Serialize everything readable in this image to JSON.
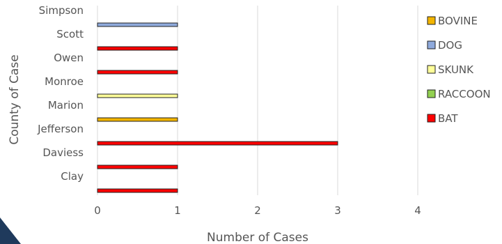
{
  "chart_data": {
    "type": "bar",
    "orientation": "horizontal",
    "stacked": true,
    "categories": [
      "Clay",
      "Daviess",
      "Jefferson",
      "Marion",
      "Monroe",
      "Owen",
      "Scott",
      "Simpson"
    ],
    "series": [
      {
        "name": "BOVINE",
        "color": "#f2b400",
        "values": [
          0,
          0,
          0,
          1,
          0,
          0,
          0,
          0
        ]
      },
      {
        "name": "DOG",
        "color": "#8faadc",
        "values": [
          0,
          0,
          0,
          0,
          0,
          0,
          0,
          1
        ]
      },
      {
        "name": "SKUNK",
        "color": "#ffff99",
        "values": [
          0,
          0,
          0,
          0,
          1,
          0,
          0,
          0
        ]
      },
      {
        "name": "RACCOON",
        "color": "#92d050",
        "values": [
          0,
          0,
          0,
          0,
          0,
          0,
          0,
          0
        ]
      },
      {
        "name": "BAT",
        "color": "#ff0000",
        "values": [
          1,
          1,
          3,
          0,
          0,
          1,
          1,
          0
        ]
      }
    ],
    "xlabel": "Number of Cases",
    "ylabel": "County of Case",
    "xlim": [
      0,
      4
    ],
    "xticks": [
      "0",
      "1",
      "2",
      "3",
      "4"
    ],
    "grid": "vertical",
    "legend_position": "right"
  }
}
